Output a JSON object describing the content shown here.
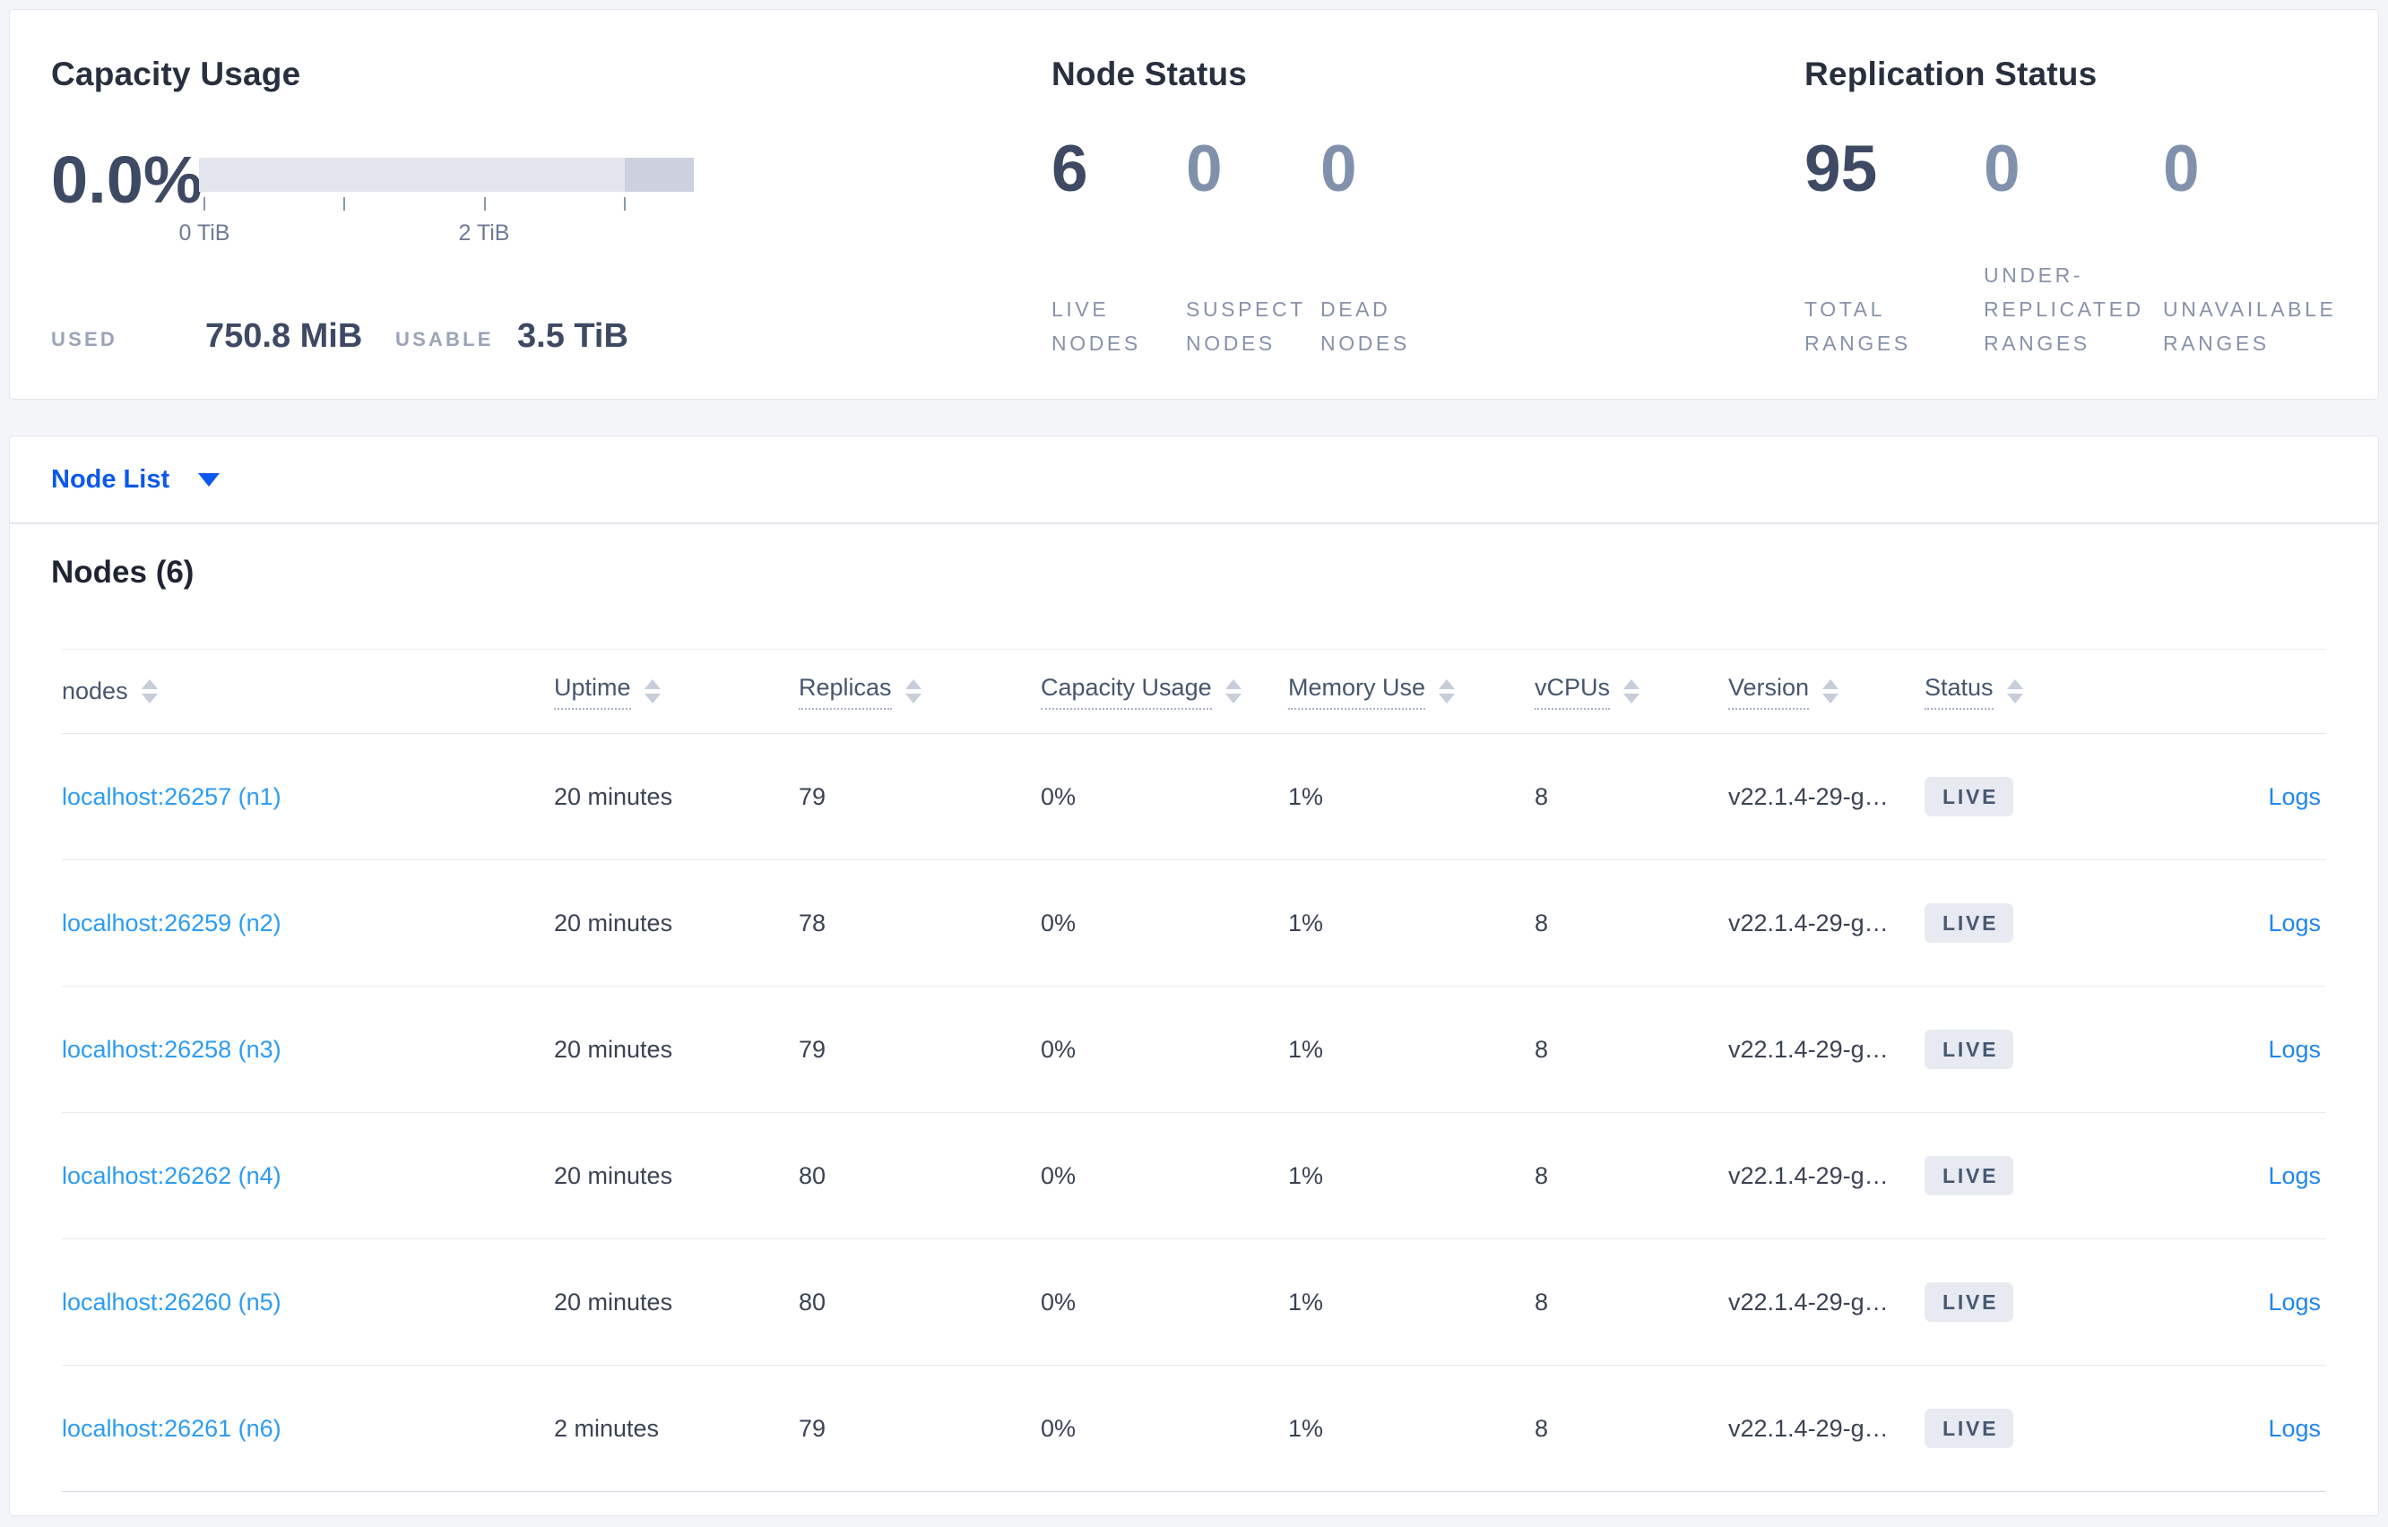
{
  "overview": {
    "capacity": {
      "title": "Capacity Usage",
      "percent": "0.0%",
      "tick_labels": [
        "0 TiB",
        "2 TiB"
      ],
      "used_label": "USED",
      "used_value": "750.8 MiB",
      "usable_label": "USABLE",
      "usable_value": "3.5 TiB"
    },
    "node_status": {
      "title": "Node Status",
      "metrics": [
        {
          "value": "6",
          "label": "LIVE NODES"
        },
        {
          "value": "0",
          "label": "SUSPECT NODES"
        },
        {
          "value": "0",
          "label": "DEAD NODES"
        }
      ]
    },
    "replication_status": {
      "title": "Replication Status",
      "metrics": [
        {
          "value": "95",
          "label": "TOTAL RANGES"
        },
        {
          "value": "0",
          "label": "UNDER-REPLICATED RANGES"
        },
        {
          "value": "0",
          "label": "UNAVAILABLE RANGES"
        }
      ]
    }
  },
  "view_selector": {
    "label": "Node List"
  },
  "nodes_section": {
    "title": "Nodes (6)",
    "columns": [
      {
        "label": "nodes"
      },
      {
        "label": "Uptime"
      },
      {
        "label": "Replicas"
      },
      {
        "label": "Capacity Usage"
      },
      {
        "label": "Memory Use"
      },
      {
        "label": "vCPUs"
      },
      {
        "label": "Version"
      },
      {
        "label": "Status"
      }
    ],
    "rows": [
      {
        "node": "localhost:26257 (n1)",
        "uptime": "20 minutes",
        "replicas": "79",
        "capacity_usage": "0%",
        "memory_use": "1%",
        "vcpus": "8",
        "version": "v22.1.4-29-g…",
        "status": "LIVE",
        "logs": "Logs"
      },
      {
        "node": "localhost:26259 (n2)",
        "uptime": "20 minutes",
        "replicas": "78",
        "capacity_usage": "0%",
        "memory_use": "1%",
        "vcpus": "8",
        "version": "v22.1.4-29-g…",
        "status": "LIVE",
        "logs": "Logs"
      },
      {
        "node": "localhost:26258 (n3)",
        "uptime": "20 minutes",
        "replicas": "79",
        "capacity_usage": "0%",
        "memory_use": "1%",
        "vcpus": "8",
        "version": "v22.1.4-29-g…",
        "status": "LIVE",
        "logs": "Logs"
      },
      {
        "node": "localhost:26262 (n4)",
        "uptime": "20 minutes",
        "replicas": "80",
        "capacity_usage": "0%",
        "memory_use": "1%",
        "vcpus": "8",
        "version": "v22.1.4-29-g…",
        "status": "LIVE",
        "logs": "Logs"
      },
      {
        "node": "localhost:26260 (n5)",
        "uptime": "20 minutes",
        "replicas": "80",
        "capacity_usage": "0%",
        "memory_use": "1%",
        "vcpus": "8",
        "version": "v22.1.4-29-g…",
        "status": "LIVE",
        "logs": "Logs"
      },
      {
        "node": "localhost:26261 (n6)",
        "uptime": "2 minutes",
        "replicas": "79",
        "capacity_usage": "0%",
        "memory_use": "1%",
        "vcpus": "8",
        "version": "v22.1.4-29-g…",
        "status": "LIVE",
        "logs": "Logs"
      }
    ]
  },
  "colors": {
    "page_bg": "#f4f5f9",
    "selector_link": "#0b58f0",
    "node_link": "#2b9cf4",
    "logs_link": "#1f86f0",
    "badge_bg": "#e7eaf1",
    "badge_text": "#475873",
    "bar_track": "#e4e6ee",
    "bar_segment": "#cdd1de",
    "metric_dark": "#3e4a63",
    "metric_muted": "#8291ab"
  }
}
